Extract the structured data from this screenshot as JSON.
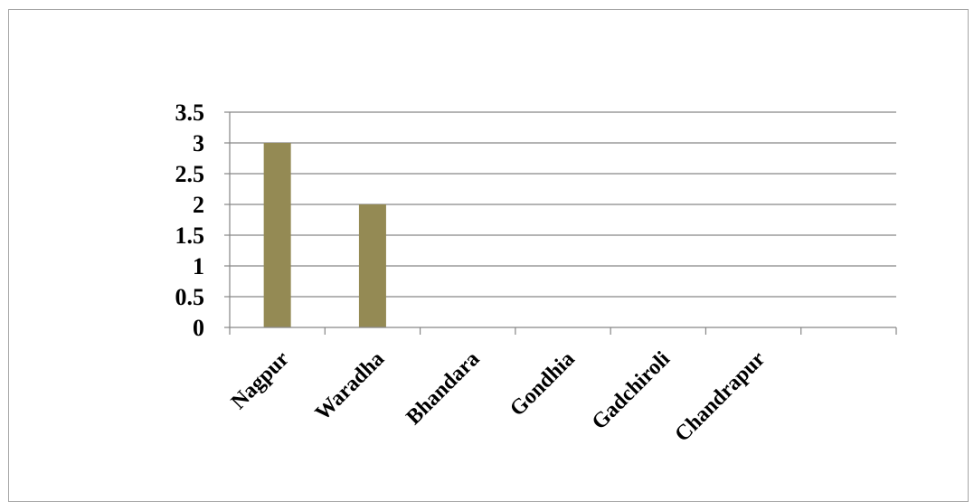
{
  "chart_data": {
    "type": "bar",
    "categories": [
      "Nagpur",
      "Waradha",
      "Bhandara",
      "Gondhia",
      "Gadchiroli",
      "Chandrapur",
      ""
    ],
    "values": [
      3,
      2,
      0,
      0,
      0,
      0,
      0
    ],
    "ylim": [
      0,
      3.5
    ],
    "yticks": [
      "0",
      "0.5",
      "1",
      "1.5",
      "2",
      "2.5",
      "3",
      "3.5"
    ],
    "grid": true,
    "legend": "none",
    "bar_color": "#948a54",
    "gridline_color": "#868686",
    "axis_color": "#868686"
  }
}
